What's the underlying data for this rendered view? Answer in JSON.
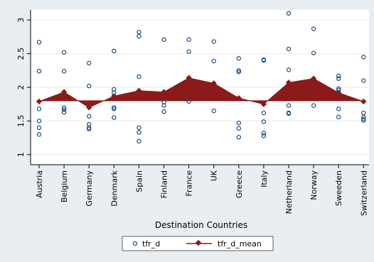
{
  "chart_data": {
    "type": "scatter+area",
    "title": "",
    "xlabel": "Destination Countries",
    "ylabel": "",
    "ylim": [
      0.85,
      3.15
    ],
    "yticks": [
      1,
      1.5,
      2,
      2.5,
      3
    ],
    "ytick_labels": [
      "1",
      "1.5",
      "2",
      "2.5",
      "3"
    ],
    "categories": [
      "Austria",
      "Belgium",
      "Germany",
      "Denmark",
      "Spain",
      "Finland",
      "France",
      "UK",
      "Greece",
      "Italy",
      "Netherland",
      "Norway",
      "Sweeden",
      "Switzerland"
    ],
    "grid": true,
    "legend_position": "bottom",
    "baseline": 1.8,
    "series": [
      {
        "name": "tfr_d",
        "kind": "scatter",
        "color": "#1a4a7a",
        "points": [
          [
            2.67,
            2.24,
            1.68,
            1.5,
            1.4,
            1.3
          ],
          [
            2.52,
            2.24,
            1.7,
            1.67,
            1.63
          ],
          [
            2.36,
            2.02,
            1.57,
            1.45,
            1.4,
            1.38
          ],
          [
            2.54,
            1.97,
            1.92,
            1.7,
            1.68,
            1.55
          ],
          [
            2.82,
            2.76,
            2.16,
            1.4,
            1.33,
            1.2
          ],
          [
            2.71,
            1.78,
            1.73,
            1.64
          ],
          [
            2.71,
            2.53,
            1.79
          ],
          [
            2.68,
            2.39,
            1.65
          ],
          [
            2.43,
            2.25,
            2.23,
            1.47,
            1.39,
            1.26
          ],
          [
            2.41,
            2.4,
            1.62,
            1.49,
            1.32,
            1.28
          ],
          [
            3.1,
            2.57,
            2.26,
            1.73,
            1.62,
            1.61
          ],
          [
            2.87,
            2.51,
            1.73
          ],
          [
            2.17,
            2.13,
            1.98,
            1.96,
            1.68,
            1.56
          ],
          [
            2.45,
            2.1,
            1.62,
            1.56,
            1.53,
            1.51
          ]
        ]
      },
      {
        "name": "tfr_d_mean",
        "kind": "area",
        "color": "#8b1a1a",
        "values": [
          1.79,
          1.93,
          1.7,
          1.87,
          1.95,
          1.93,
          2.14,
          2.06,
          1.84,
          1.75,
          2.07,
          2.13,
          1.92,
          1.79
        ]
      }
    ]
  }
}
